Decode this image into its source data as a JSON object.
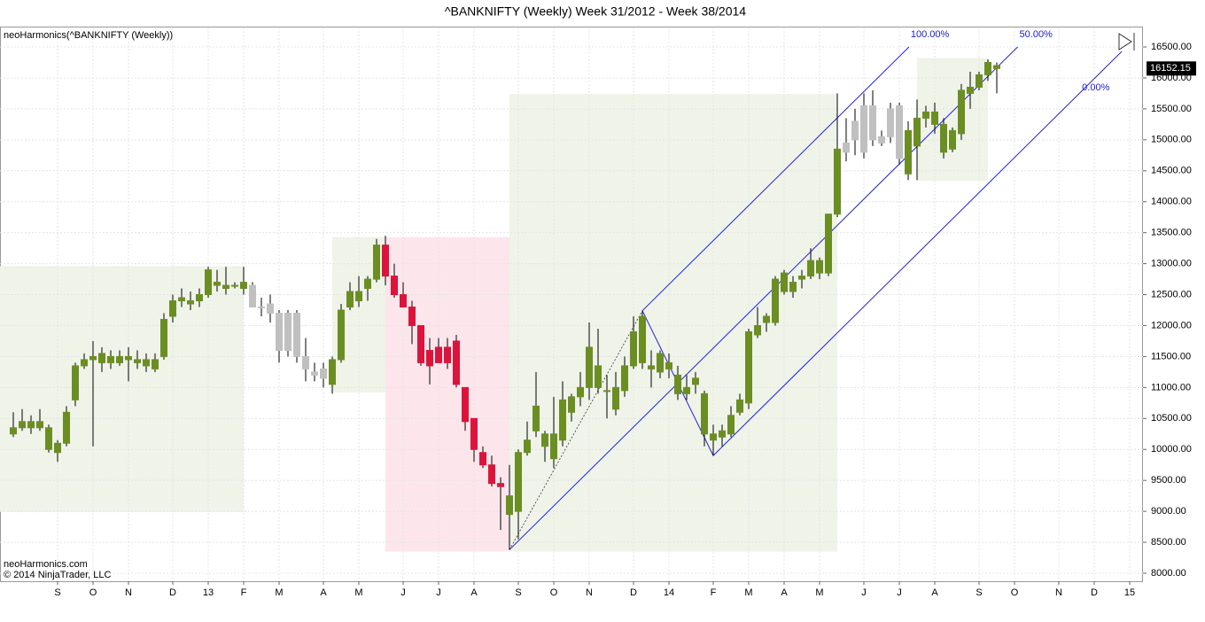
{
  "chart_data": {
    "type": "candlestick",
    "title": "^BANKNIFTY (Weekly)  Week 31/2012 - Week 38/2014",
    "indicator_label": "neoHarmonics(^BANKNIFTY (Weekly))",
    "footer_lines": [
      "neoHarmonics.com",
      "© 2014 NinjaTrader, LLC"
    ],
    "last_price_label": "16152.15",
    "ylim": [
      7930,
      16700
    ],
    "yticks": [
      {
        "value": 8000,
        "label": "8000.00"
      },
      {
        "value": 8500,
        "label": "8500.00"
      },
      {
        "value": 9000,
        "label": "9000.00"
      },
      {
        "value": 9500,
        "label": "9500.00"
      },
      {
        "value": 10000,
        "label": "10000.00"
      },
      {
        "value": 10500,
        "label": "10500.00"
      },
      {
        "value": 11000,
        "label": "11000.00"
      },
      {
        "value": 11500,
        "label": "11500.00"
      },
      {
        "value": 12000,
        "label": "12000.00"
      },
      {
        "value": 12500,
        "label": "12500.00"
      },
      {
        "value": 13000,
        "label": "13000.00"
      },
      {
        "value": 13500,
        "label": "13500.00"
      },
      {
        "value": 14000,
        "label": "14000.00"
      },
      {
        "value": 14500,
        "label": "14500.00"
      },
      {
        "value": 15000,
        "label": "15000.00"
      },
      {
        "value": 15500,
        "label": "15500.00"
      },
      {
        "value": 16000,
        "label": "16000.00"
      },
      {
        "value": 16500,
        "label": "16500.00"
      }
    ],
    "xlim": [
      -1.5,
      127.5
    ],
    "xticks": [
      {
        "value": 5,
        "label": "S"
      },
      {
        "value": 9,
        "label": "O"
      },
      {
        "value": 13,
        "label": "N"
      },
      {
        "value": 18,
        "label": "D"
      },
      {
        "value": 22,
        "label": "13"
      },
      {
        "value": 26,
        "label": "F"
      },
      {
        "value": 30,
        "label": "M"
      },
      {
        "value": 35,
        "label": "A"
      },
      {
        "value": 39,
        "label": "M"
      },
      {
        "value": 44,
        "label": "J"
      },
      {
        "value": 48,
        "label": "J"
      },
      {
        "value": 52,
        "label": "A"
      },
      {
        "value": 57,
        "label": "S"
      },
      {
        "value": 61,
        "label": "O"
      },
      {
        "value": 65,
        "label": "N"
      },
      {
        "value": 70,
        "label": "D"
      },
      {
        "value": 74,
        "label": "14"
      },
      {
        "value": 79,
        "label": "F"
      },
      {
        "value": 83,
        "label": "M"
      },
      {
        "value": 87,
        "label": "A"
      },
      {
        "value": 91,
        "label": "M"
      },
      {
        "value": 96,
        "label": "J"
      },
      {
        "value": 100,
        "label": "J"
      },
      {
        "value": 104,
        "label": "A"
      },
      {
        "value": 109,
        "label": "S"
      },
      {
        "value": 113,
        "label": "O"
      },
      {
        "value": 118,
        "label": "N"
      },
      {
        "value": 122,
        "label": "D"
      },
      {
        "value": 126,
        "label": "15"
      }
    ],
    "grid": true,
    "palette": {
      "g": "#6b8e23",
      "s": "#c0c0c0",
      "r": "#dc143c"
    },
    "color_codes": "gggggggggggggggggggggggggggsssssssssggggggrrrrrrrrrrrrrrggggggggggggggggggggggggggggggggggggggsssssssggggggggggg",
    "candles": [
      [
        10250,
        10600,
        10200,
        10350
      ],
      [
        10350,
        10650,
        10300,
        10450
      ],
      [
        10350,
        10550,
        10250,
        10450
      ],
      [
        10350,
        10650,
        10300,
        10450
      ],
      [
        10350,
        10400,
        9950,
        10000
      ],
      [
        9950,
        10150,
        9800,
        10100
      ],
      [
        10100,
        10700,
        10050,
        10600
      ],
      [
        10800,
        11400,
        10700,
        11350
      ],
      [
        11350,
        11550,
        11300,
        11450
      ],
      [
        11450,
        11750,
        10050,
        11500
      ],
      [
        11400,
        11650,
        11250,
        11550
      ],
      [
        11400,
        11600,
        11300,
        11500
      ],
      [
        11400,
        11600,
        11350,
        11500
      ],
      [
        11450,
        11650,
        11100,
        11500
      ],
      [
        11400,
        11600,
        11300,
        11450
      ],
      [
        11350,
        11550,
        11250,
        11450
      ],
      [
        11300,
        11550,
        11250,
        11450
      ],
      [
        11500,
        12200,
        11450,
        12100
      ],
      [
        12150,
        12500,
        12050,
        12400
      ],
      [
        12400,
        12600,
        12300,
        12450
      ],
      [
        12350,
        12550,
        12250,
        12400
      ],
      [
        12400,
        12600,
        12300,
        12500
      ],
      [
        12500,
        12950,
        12450,
        12900
      ],
      [
        12700,
        12900,
        12550,
        12650
      ],
      [
        12600,
        12950,
        12500,
        12650
      ],
      [
        12650,
        12700,
        12600,
        12650
      ],
      [
        12600,
        12950,
        12500,
        12700
      ],
      [
        12650,
        12700,
        12300,
        12300
      ],
      [
        12300,
        12450,
        12150,
        12300
      ],
      [
        12350,
        12500,
        12050,
        12200
      ],
      [
        12200,
        12250,
        11400,
        11600
      ],
      [
        11600,
        12250,
        11500,
        12200
      ],
      [
        12200,
        12250,
        11400,
        11500
      ],
      [
        11500,
        11800,
        11100,
        11300
      ],
      [
        11250,
        11400,
        11100,
        11200
      ],
      [
        11150,
        11400,
        11000,
        11300
      ],
      [
        11050,
        11500,
        10900,
        11450
      ],
      [
        11450,
        12350,
        11400,
        12250
      ],
      [
        12300,
        12700,
        12250,
        12550
      ],
      [
        12400,
        12800,
        12300,
        12550
      ],
      [
        12600,
        12800,
        12400,
        12750
      ],
      [
        12750,
        13400,
        12700,
        13300
      ],
      [
        13300,
        13450,
        12650,
        12800
      ],
      [
        12800,
        13000,
        12450,
        12500
      ],
      [
        12500,
        12700,
        12300,
        12300
      ],
      [
        12300,
        12400,
        11700,
        12000
      ],
      [
        12000,
        12000,
        11350,
        11400
      ],
      [
        11600,
        11800,
        11050,
        11350
      ],
      [
        11650,
        11800,
        11400,
        11400
      ],
      [
        11650,
        11800,
        11300,
        11400
      ],
      [
        11750,
        11850,
        11000,
        11050
      ],
      [
        11000,
        11000,
        10300,
        10450
      ],
      [
        10500,
        10500,
        9800,
        10000
      ],
      [
        9950,
        10050,
        9700,
        9750
      ],
      [
        9750,
        9900,
        9400,
        9450
      ],
      [
        9450,
        9550,
        8700,
        9400
      ],
      [
        8950,
        9750,
        8380,
        9250
      ],
      [
        9000,
        10000,
        8550,
        9950
      ],
      [
        9950,
        10450,
        9900,
        10150
      ],
      [
        10300,
        11250,
        10200,
        10700
      ],
      [
        10250,
        10300,
        9800,
        10050
      ],
      [
        9850,
        10850,
        9700,
        10250
      ],
      [
        10150,
        11100,
        10050,
        10800
      ],
      [
        10600,
        10900,
        10450,
        10850
      ],
      [
        10850,
        11250,
        10700,
        11000
      ],
      [
        11000,
        12050,
        10800,
        11650
      ],
      [
        11000,
        11950,
        10900,
        11350
      ],
      [
        10950,
        11200,
        10500,
        10950
      ],
      [
        10650,
        11250,
        10550,
        11000
      ],
      [
        10950,
        11500,
        10850,
        11350
      ],
      [
        11350,
        12150,
        11300,
        11900
      ],
      [
        11400,
        12240,
        11300,
        12150
      ],
      [
        11300,
        11600,
        11000,
        11350
      ],
      [
        11250,
        11600,
        11150,
        11550
      ],
      [
        11400,
        11550,
        11150,
        11300
      ],
      [
        10900,
        11350,
        10800,
        11200
      ],
      [
        10900,
        11200,
        10800,
        11000
      ],
      [
        11050,
        11250,
        10900,
        11150
      ],
      [
        10900,
        10950,
        10050,
        10250
      ],
      [
        10150,
        10400,
        9900,
        10250
      ],
      [
        10200,
        10400,
        10050,
        10300
      ],
      [
        10250,
        10700,
        10200,
        10550
      ],
      [
        10600,
        10900,
        10550,
        10800
      ],
      [
        10750,
        11950,
        10650,
        11900
      ],
      [
        11850,
        12300,
        11800,
        12000
      ],
      [
        12050,
        12200,
        11900,
        12150
      ],
      [
        12050,
        12800,
        12000,
        12750
      ],
      [
        12550,
        12900,
        12500,
        12850
      ],
      [
        12550,
        12800,
        12450,
        12700
      ],
      [
        12750,
        12900,
        12600,
        12800
      ],
      [
        12800,
        13250,
        12750,
        13050
      ],
      [
        12850,
        13100,
        12750,
        13050
      ],
      [
        12850,
        13800,
        12800,
        13800
      ],
      [
        13800,
        15750,
        13750,
        14850
      ],
      [
        14800,
        15350,
        14650,
        14950
      ],
      [
        15000,
        15500,
        14750,
        15300
      ],
      [
        14800,
        15750,
        14700,
        15550
      ],
      [
        15550,
        15800,
        14900,
        15000
      ],
      [
        14950,
        15150,
        14900,
        15050
      ],
      [
        15050,
        15600,
        14950,
        15500
      ],
      [
        15550,
        15600,
        14600,
        14700
      ],
      [
        14450,
        15300,
        14350,
        15150
      ],
      [
        14900,
        15650,
        14350,
        15350
      ],
      [
        15350,
        15550,
        15200,
        15450
      ],
      [
        15450,
        15600,
        15100,
        15250
      ],
      [
        15250,
        15350,
        14700,
        14800
      ],
      [
        14850,
        15200,
        14800,
        15150
      ],
      [
        15100,
        15900,
        15000,
        15800
      ],
      [
        15750,
        16100,
        15500,
        15850
      ],
      [
        15850,
        16100,
        15800,
        16050
      ],
      [
        16050,
        16300,
        15950,
        16250
      ],
      [
        16200,
        16250,
        15750,
        16152.15
      ]
    ],
    "zones": [
      {
        "from": -1.5,
        "to": 26,
        "low": 8990,
        "high": 12960,
        "color": "#eff3e8"
      },
      {
        "from": 36,
        "to": 42,
        "low": 10920,
        "high": 13430,
        "color": "#eff3e8"
      },
      {
        "from": 42,
        "to": 56,
        "low": 8350,
        "high": 13430,
        "color": "#fce6ec"
      },
      {
        "from": 56,
        "to": 93,
        "low": 8350,
        "high": 15740,
        "color": "#eff3e8"
      },
      {
        "from": 102,
        "to": 110,
        "low": 14340,
        "high": 16320,
        "color": "#eff3e8"
      }
    ],
    "pitchfork": {
      "color": "#2020e0",
      "points": [
        [
          56,
          8380
        ],
        [
          71,
          12240
        ],
        [
          79,
          9900
        ]
      ],
      "labels": [
        "100.00%",
        "50.00%",
        "0.00%"
      ]
    }
  }
}
